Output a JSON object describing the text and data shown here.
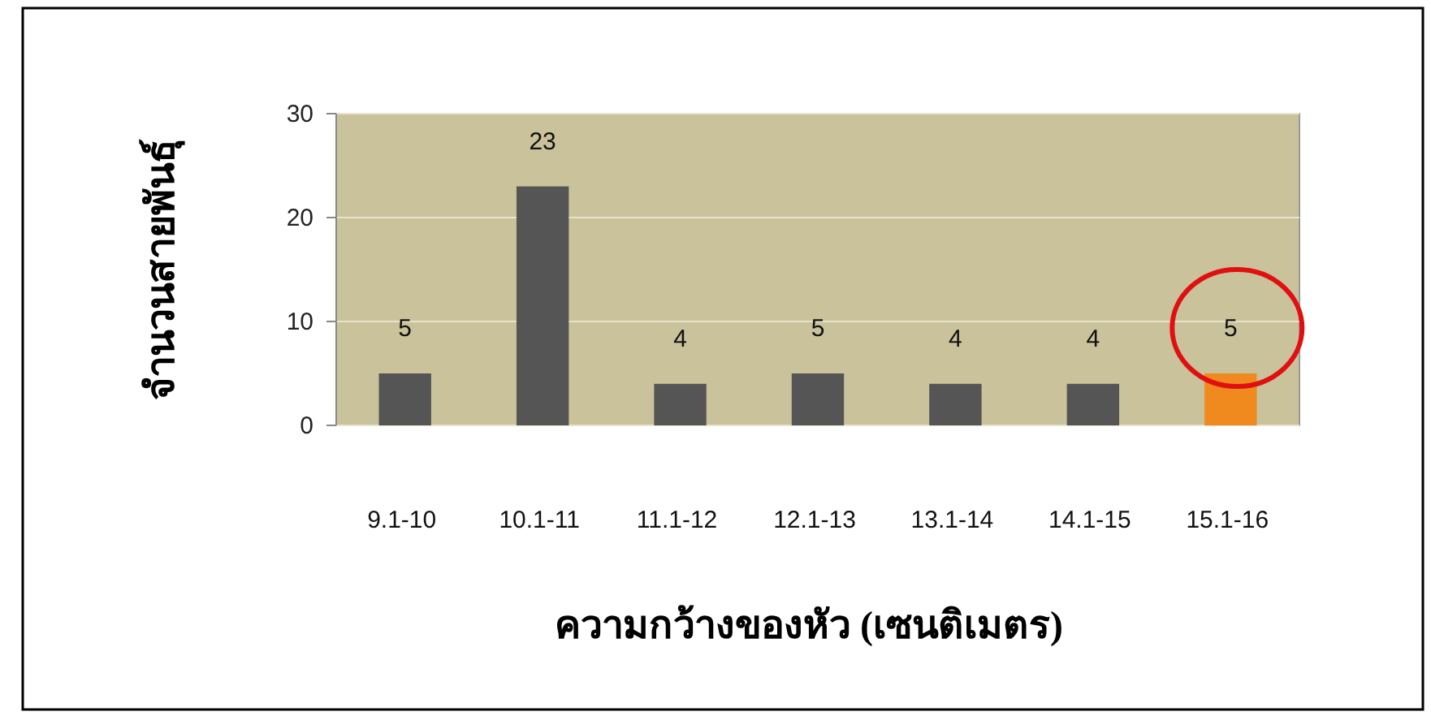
{
  "chart_data": {
    "type": "bar",
    "xlabel": "ความกว้างของหัว (เซนติเมตร)",
    "ylabel": "จำนวนสายพันธุ์",
    "categories": [
      "9.1-10",
      "10.1-11",
      "11.1-12",
      "12.1-13",
      "13.1-14",
      "14.1-15",
      "15.1-16"
    ],
    "values": [
      5,
      23,
      4,
      5,
      4,
      4,
      5
    ],
    "colors": [
      "#555555",
      "#555555",
      "#555555",
      "#555555",
      "#555555",
      "#555555",
      "#f08a1e"
    ],
    "ylim": [
      0,
      30
    ],
    "yticks": [
      0,
      10,
      20,
      30
    ],
    "grid": "y",
    "data_labels": true
  }
}
